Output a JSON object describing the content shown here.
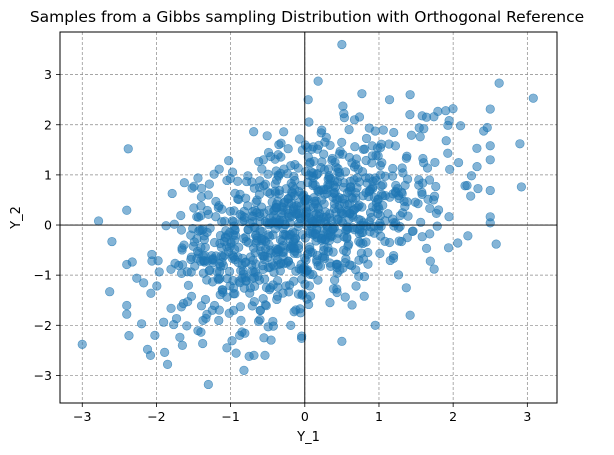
{
  "chart_data": {
    "type": "scatter",
    "title": "Samples from a Gibbs sampling Distribution with Orthogonal Reference",
    "xlabel": "Y_1",
    "ylabel": "Y_2",
    "xlim": [
      -3.3,
      3.4
    ],
    "ylim": [
      -3.55,
      3.85
    ],
    "xticks": [
      -3,
      -2,
      -1,
      0,
      1,
      2,
      3
    ],
    "yticks": [
      -3,
      -2,
      -1,
      0,
      1,
      2,
      3
    ],
    "grid": true,
    "reference_lines": {
      "x": 0,
      "y": 0
    },
    "marker_color": "#1f77b4",
    "marker_alpha": 0.55,
    "approx_sample_count": 1000,
    "approx_correlation": 0.45,
    "outlier_points": [
      [
        -3.0,
        -2.38
      ],
      [
        -2.78,
        0.08
      ],
      [
        -2.6,
        -0.33
      ],
      [
        -2.63,
        -1.33
      ],
      [
        -2.38,
        1.52
      ],
      [
        -2.2,
        -1.97
      ],
      [
        -2.12,
        -2.48
      ],
      [
        -2.08,
        -2.6
      ],
      [
        -1.85,
        -2.78
      ],
      [
        -1.3,
        -3.18
      ],
      [
        -0.82,
        -2.9
      ],
      [
        -0.75,
        -2.62
      ],
      [
        0.5,
        3.6
      ],
      [
        0.18,
        2.87
      ],
      [
        0.77,
        2.62
      ],
      [
        1.42,
        2.6
      ],
      [
        2.62,
        2.83
      ],
      [
        3.08,
        2.53
      ],
      [
        2.92,
        0.76
      ],
      [
        2.9,
        1.62
      ],
      [
        2.58,
        -0.38
      ],
      [
        2.32,
        1.53
      ],
      [
        1.42,
        -1.8
      ],
      [
        0.95,
        -2.0
      ],
      [
        0.5,
        -2.32
      ],
      [
        -0.55,
        -2.25
      ],
      [
        -1.05,
        -2.45
      ],
      [
        -1.65,
        -2.4
      ],
      [
        2.1,
        1.98
      ],
      [
        1.9,
        2.28
      ]
    ],
    "generator_seed": 7
  }
}
